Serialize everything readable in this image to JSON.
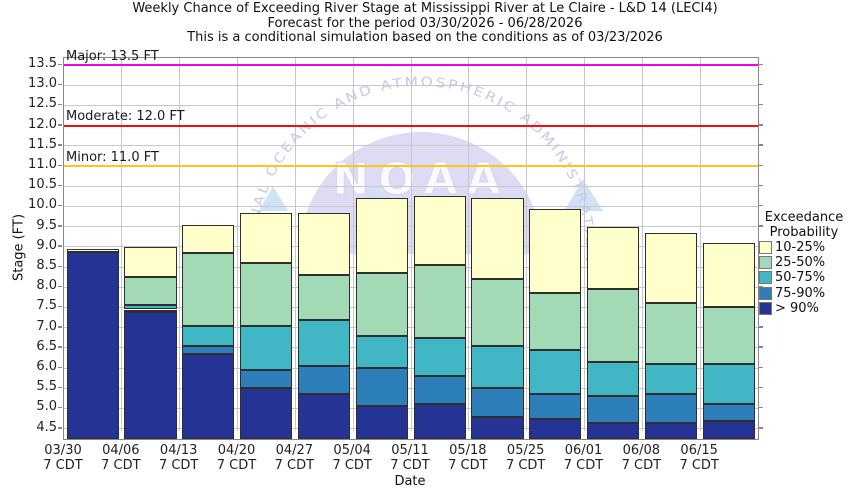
{
  "title": {
    "line1": "Weekly Chance of Exceeding River Stage at Mississippi River at Le Claire - L&D 14 (LECI4)",
    "line2": "Forecast for the period 03/30/2026 - 06/28/2026",
    "line3": "This is a conditional simulation based on the conditions as of 03/23/2026"
  },
  "axes": {
    "y_label": "Stage (FT)",
    "x_label": "Date",
    "y_ticks": [
      "4.5",
      "5.0",
      "5.5",
      "6.0",
      "6.5",
      "7.0",
      "7.5",
      "8.0",
      "8.5",
      "9.0",
      "9.5",
      "10.0",
      "10.5",
      "11.0",
      "11.5",
      "12.0",
      "12.5",
      "13.0",
      "13.5"
    ],
    "x_tick_sublabel": "7 CDT"
  },
  "legend": {
    "title_line1": "Exceedance",
    "title_line2": "Probability",
    "items": [
      {
        "label": "10-25%",
        "color": "#ffffcc"
      },
      {
        "label": "25-50%",
        "color": "#a1dab4"
      },
      {
        "label": "50-75%",
        "color": "#41b6c4"
      },
      {
        "label": "75-90%",
        "color": "#2c7fb8"
      },
      {
        "label": "> 90%",
        "color": "#253494"
      }
    ]
  },
  "watermark": {
    "arc_text": "NATIONAL OCEANIC AND ATMOSPHERIC ADMINISTRATION",
    "main_text": "NOAA"
  },
  "chart_data": {
    "type": "bar",
    "stacked": true,
    "title": "Weekly Chance of Exceeding River Stage at Mississippi River at Le Claire - L&D 14 (LECI4)",
    "xlabel": "Date",
    "ylabel": "Stage (FT)",
    "ylim": [
      4.245,
      13.675
    ],
    "grid": true,
    "legend_position": "right",
    "categories": [
      "03/30",
      "04/06",
      "04/13",
      "04/20",
      "04/27",
      "05/04",
      "05/11",
      "05/18",
      "05/25",
      "06/01",
      "06/08",
      "06/15"
    ],
    "x_tick_sublabel": "7 CDT",
    "series": [
      {
        "name": "> 90%",
        "color": "#253494",
        "band_top_ft": [
          8.88,
          7.4,
          6.35,
          5.5,
          5.35,
          5.05,
          5.1,
          4.8,
          4.75,
          4.65,
          4.65,
          4.7
        ]
      },
      {
        "name": "75-90%",
        "color": "#2c7fb8",
        "band_top_ft": [
          8.88,
          7.45,
          6.55,
          5.95,
          6.05,
          6.0,
          5.8,
          5.5,
          5.35,
          5.3,
          5.35,
          5.1
        ]
      },
      {
        "name": "50-75%",
        "color": "#41b6c4",
        "band_top_ft": [
          8.88,
          7.55,
          7.05,
          7.05,
          7.2,
          6.8,
          6.75,
          6.55,
          6.45,
          6.15,
          6.1,
          6.1
        ]
      },
      {
        "name": "25-50%",
        "color": "#a1dab4",
        "band_top_ft": [
          8.88,
          8.25,
          8.85,
          8.6,
          8.3,
          8.35,
          8.55,
          8.2,
          7.85,
          7.95,
          7.6,
          7.5
        ]
      },
      {
        "name": "10-25%",
        "color": "#ffffcc",
        "band_top_ft": [
          8.95,
          9.0,
          9.55,
          9.85,
          9.85,
          10.2,
          10.25,
          10.2,
          9.95,
          9.5,
          9.35,
          9.1
        ]
      }
    ],
    "thresholds": [
      {
        "name": "major",
        "label": "Major: 13.5 FT",
        "value": 13.5,
        "color": "#f000f0"
      },
      {
        "name": "moderate",
        "label": "Moderate: 12.0 FT",
        "value": 12.0,
        "color": "#ee1010"
      },
      {
        "name": "minor",
        "label": "Minor: 11.0 FT",
        "value": 11.0,
        "color": "#ffc41e"
      }
    ]
  }
}
